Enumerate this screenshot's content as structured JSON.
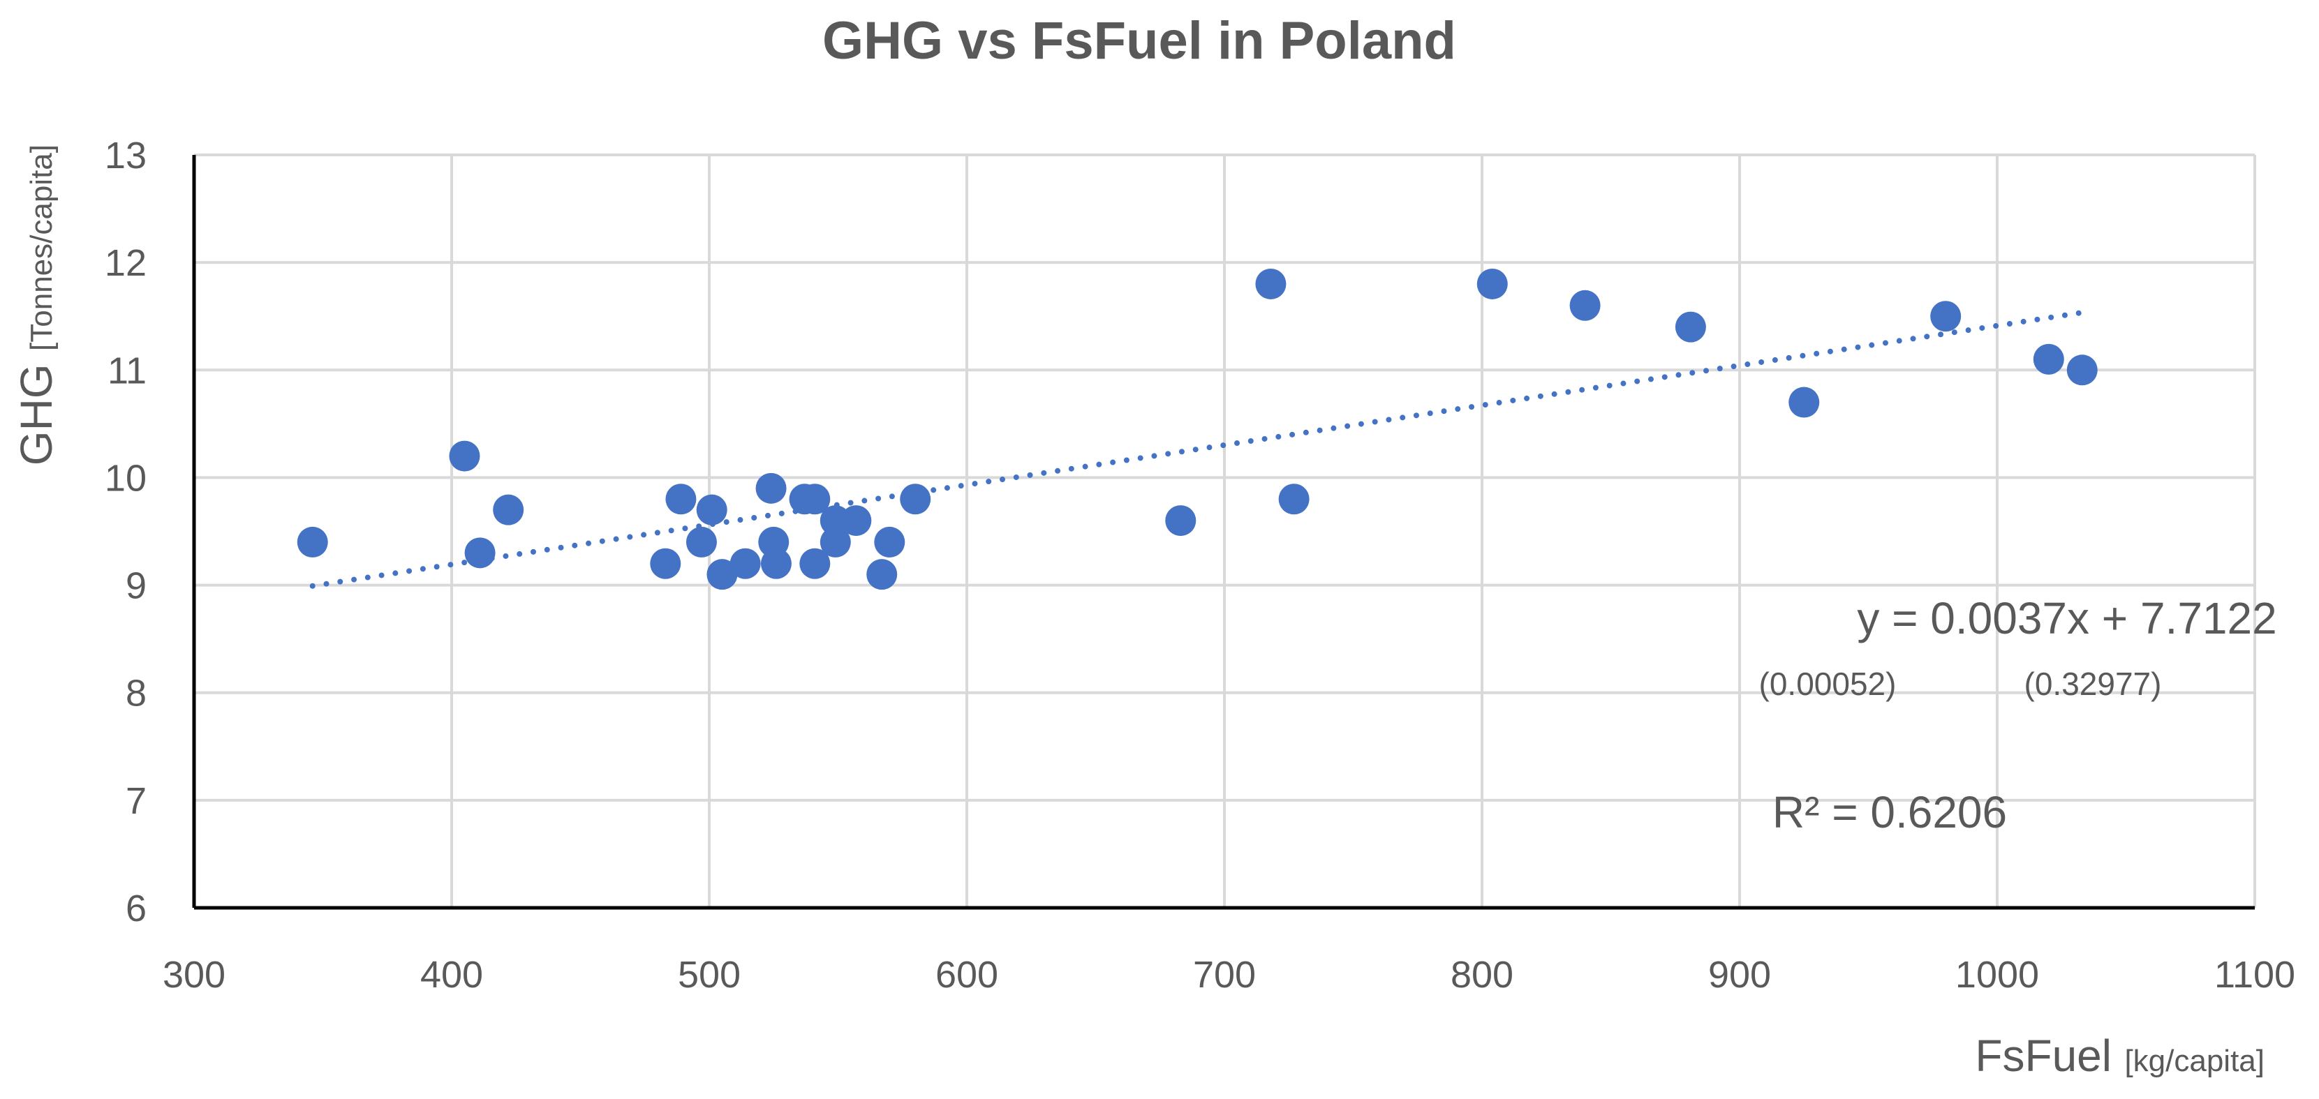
{
  "chart_data": {
    "type": "scatter",
    "title": "GHG vs FsFuel in Poland",
    "xlabel": "FsFuel",
    "xlabel_unit": "[kg/capita]",
    "ylabel": "GHG",
    "ylabel_unit": "[Tonnes/capita]",
    "xlim": [
      300,
      1100
    ],
    "ylim": [
      6,
      13
    ],
    "xticks": [
      "300",
      "400",
      "500",
      "600",
      "700",
      "800",
      "900",
      "1000",
      "1100"
    ],
    "yticks": [
      "6",
      "7",
      "8",
      "9",
      "10",
      "11",
      "12",
      "13"
    ],
    "grid": true,
    "marker_color": "#4472C4",
    "series": [
      {
        "name": "GHG",
        "points": [
          [
            346,
            9.4
          ],
          [
            405,
            10.2
          ],
          [
            411,
            9.3
          ],
          [
            422,
            9.7
          ],
          [
            483,
            9.2
          ],
          [
            489,
            9.8
          ],
          [
            497,
            9.4
          ],
          [
            501,
            9.7
          ],
          [
            505,
            9.1
          ],
          [
            514,
            9.2
          ],
          [
            524,
            9.9
          ],
          [
            525,
            9.4
          ],
          [
            526,
            9.2
          ],
          [
            537,
            9.8
          ],
          [
            541,
            9.8
          ],
          [
            541,
            9.2
          ],
          [
            549,
            9.6
          ],
          [
            549,
            9.4
          ],
          [
            557,
            9.6
          ],
          [
            567,
            9.1
          ],
          [
            570,
            9.4
          ],
          [
            580,
            9.8
          ],
          [
            683,
            9.6
          ],
          [
            718,
            11.8
          ],
          [
            727,
            9.8
          ],
          [
            804,
            11.8
          ],
          [
            840,
            11.6
          ],
          [
            881,
            11.4
          ],
          [
            925,
            10.7
          ],
          [
            980,
            11.5
          ],
          [
            1020,
            11.1
          ],
          [
            1033,
            11.0
          ]
        ]
      }
    ],
    "trendline": {
      "type": "linear",
      "slope": 0.0037,
      "intercept": 7.7122,
      "x_start": 346,
      "x_end": 1033,
      "style": "dotted"
    },
    "annotations": {
      "equation": "y = 0.0037x + 7.7122",
      "slope_se": "(0.00052)",
      "intercept_se": "(0.32977)",
      "r_squared": "R² = 0.6206"
    }
  }
}
